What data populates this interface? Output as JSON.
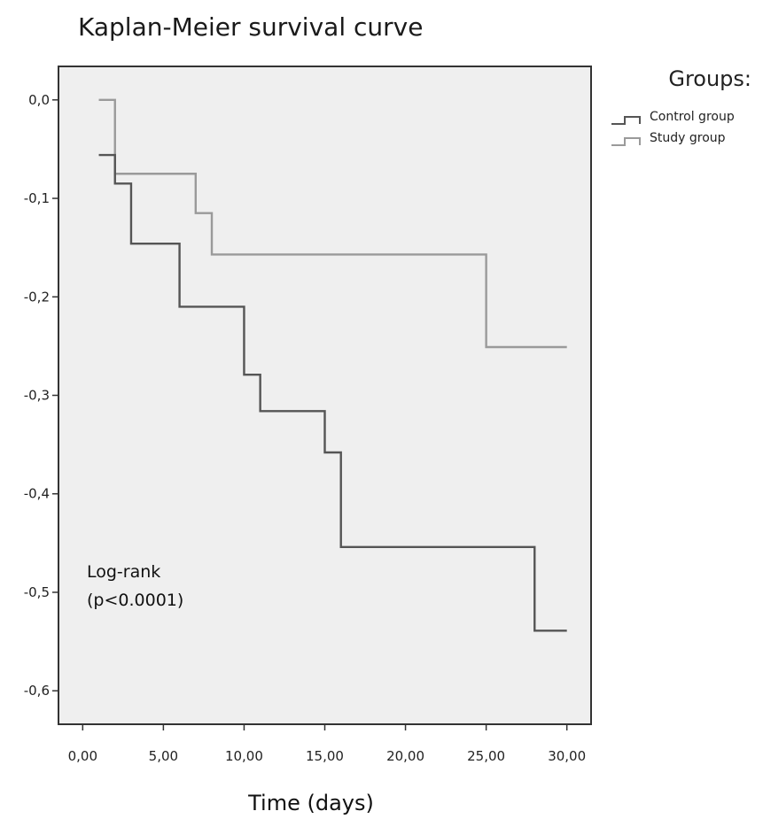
{
  "chart_data": {
    "type": "line",
    "title": "Kaplan-Meier survival curve",
    "xlabel": "Time (days)",
    "ylabel": "",
    "xlim": [
      -1.5,
      31.5
    ],
    "ylim": [
      -0.634,
      0.034
    ],
    "x_ticks": [
      0,
      5,
      10,
      15,
      20,
      25,
      30
    ],
    "x_tick_labels": [
      "0,00",
      "5,00",
      "10,00",
      "15,00",
      "20,00",
      "25,00",
      "30,00"
    ],
    "y_ticks": [
      0,
      -0.1,
      -0.2,
      -0.3,
      -0.4,
      -0.5,
      -0.6
    ],
    "y_tick_labels": [
      "0,0",
      "-0,1",
      "-0,2",
      "-0,3",
      "-0,4",
      "-0,5",
      "-0,6"
    ],
    "grid": false,
    "legend": {
      "title": "Groups:",
      "placement": "top-right, outside plot"
    },
    "annotation": {
      "lines": [
        "Log-rank",
        "(p<0.0001)"
      ]
    },
    "series": [
      {
        "name": "Control group",
        "color": "#555555",
        "step": true,
        "x": [
          1,
          2,
          3,
          6,
          10,
          11,
          15,
          16,
          28,
          30
        ],
        "y": [
          -0.056,
          -0.085,
          -0.146,
          -0.21,
          -0.279,
          -0.316,
          -0.358,
          -0.454,
          -0.539,
          -0.539
        ]
      },
      {
        "name": "Study group",
        "color": "#9a9a9a",
        "step": true,
        "x": [
          1,
          2,
          7,
          8,
          25,
          30
        ],
        "y": [
          0,
          -0.075,
          -0.115,
          -0.157,
          -0.251,
          -0.251
        ]
      }
    ],
    "colors": {
      "plot_background": "#efefef",
      "axis": "#333333"
    }
  }
}
